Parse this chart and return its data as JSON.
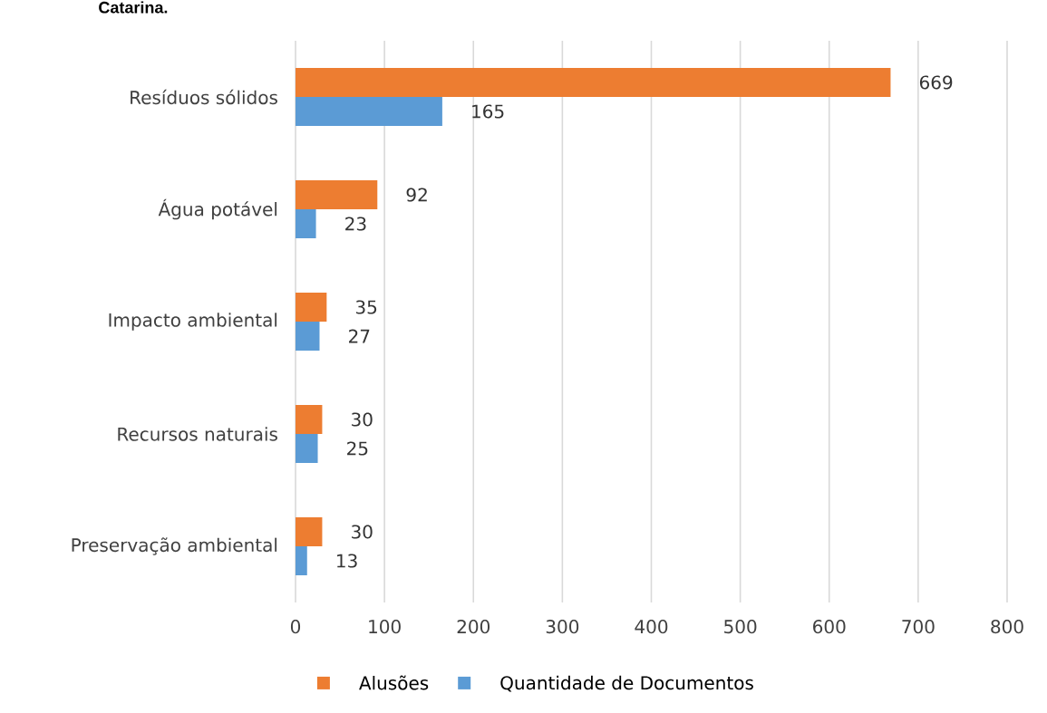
{
  "chart_data": {
    "type": "bar",
    "orientation": "horizontal",
    "categories": [
      "Resíduos sólidos",
      "Água potável",
      "Impacto ambiental",
      "Recursos naturais",
      "Preservação ambiental"
    ],
    "series": [
      {
        "name": "Alusões",
        "color": "#ed7d31",
        "values": [
          669,
          92,
          35,
          30,
          30
        ]
      },
      {
        "name": "Quantidade de Documentos",
        "color": "#5b9bd5",
        "values": [
          165,
          23,
          27,
          25,
          13
        ]
      }
    ],
    "xlim": [
      0,
      800
    ],
    "xticks": [
      0,
      100,
      200,
      300,
      400,
      500,
      600,
      700,
      800
    ],
    "grid": "x",
    "legend": "bottom",
    "data_labels": true,
    "annotations": [
      "Catarina."
    ]
  }
}
